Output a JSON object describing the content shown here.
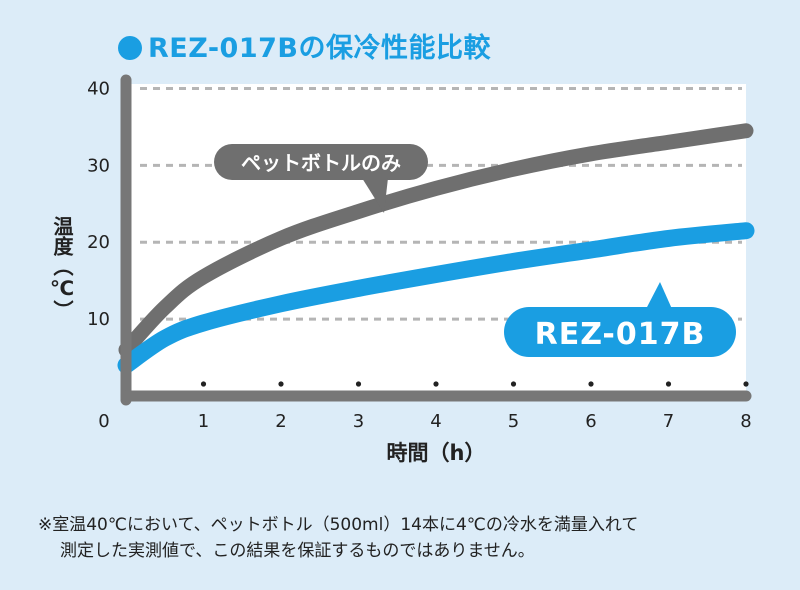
{
  "title": "REZ-017Bの保冷性能比較",
  "colors": {
    "background": "#dcecf8",
    "plot_area": "#ffffff",
    "accent_blue": "#1a9ee2",
    "axis_gray": "#777777",
    "bottle_series": "#6f6f6f",
    "product_series": "#1a9ee2"
  },
  "chart_data": {
    "type": "line",
    "xlabel": "時間（h）",
    "ylabel": "温度（℃）",
    "xlim": [
      0,
      8
    ],
    "ylim": [
      0,
      45
    ],
    "x_ticks": [
      "0",
      "1",
      "2",
      "3",
      "4",
      "5",
      "6",
      "7",
      "8"
    ],
    "y_ticks": [
      "10",
      "20",
      "30",
      "40"
    ],
    "grid": "horizontal dashed",
    "series": [
      {
        "name": "ペットボトルのみ",
        "x": [
          0,
          0.5,
          1,
          2,
          3,
          4,
          5,
          6,
          7,
          8
        ],
        "y": [
          6,
          11.5,
          15.5,
          20.5,
          24.0,
          27.0,
          29.5,
          31.5,
          33.0,
          34.5
        ]
      },
      {
        "name": "REZ-017B",
        "x": [
          0,
          0.5,
          1,
          2,
          3,
          4,
          5,
          6,
          7,
          8
        ],
        "y": [
          4,
          7.5,
          9.5,
          12.0,
          14.0,
          15.8,
          17.5,
          19.0,
          20.5,
          21.5
        ]
      }
    ]
  },
  "footnote": {
    "line1": "※室温40℃において、ペットボトル（500ml）14本に4℃の冷水を満量入れて",
    "line2": "測定した実測値で、この結果を保証するものではありません。"
  }
}
